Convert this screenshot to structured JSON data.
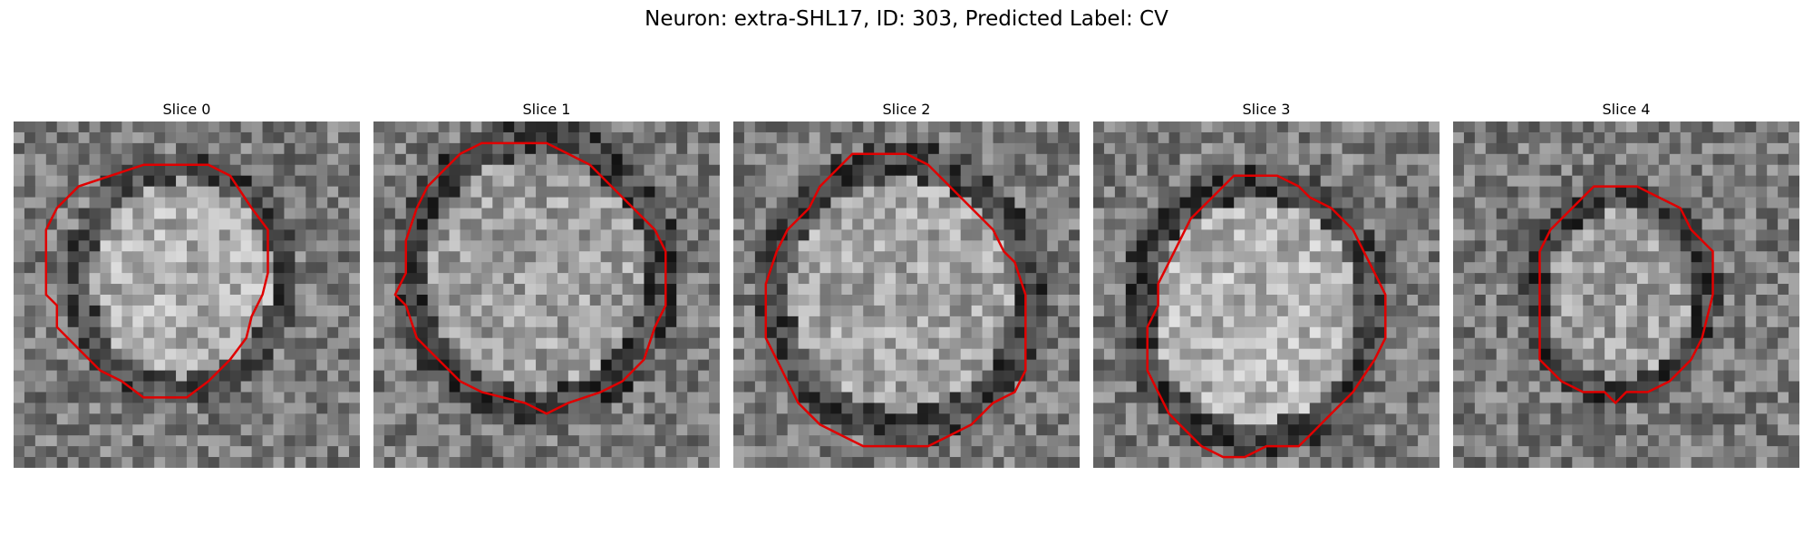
{
  "figure": {
    "title": "Neuron: extra-SHL17, ID: 303, Predicted Label: CV",
    "contour_color": "#e00000",
    "colormap": "gray",
    "panels": [
      {
        "title": "Slice 0"
      },
      {
        "title": "Slice 1"
      },
      {
        "title": "Slice 2"
      },
      {
        "title": "Slice 3"
      },
      {
        "title": "Slice 4"
      }
    ]
  }
}
